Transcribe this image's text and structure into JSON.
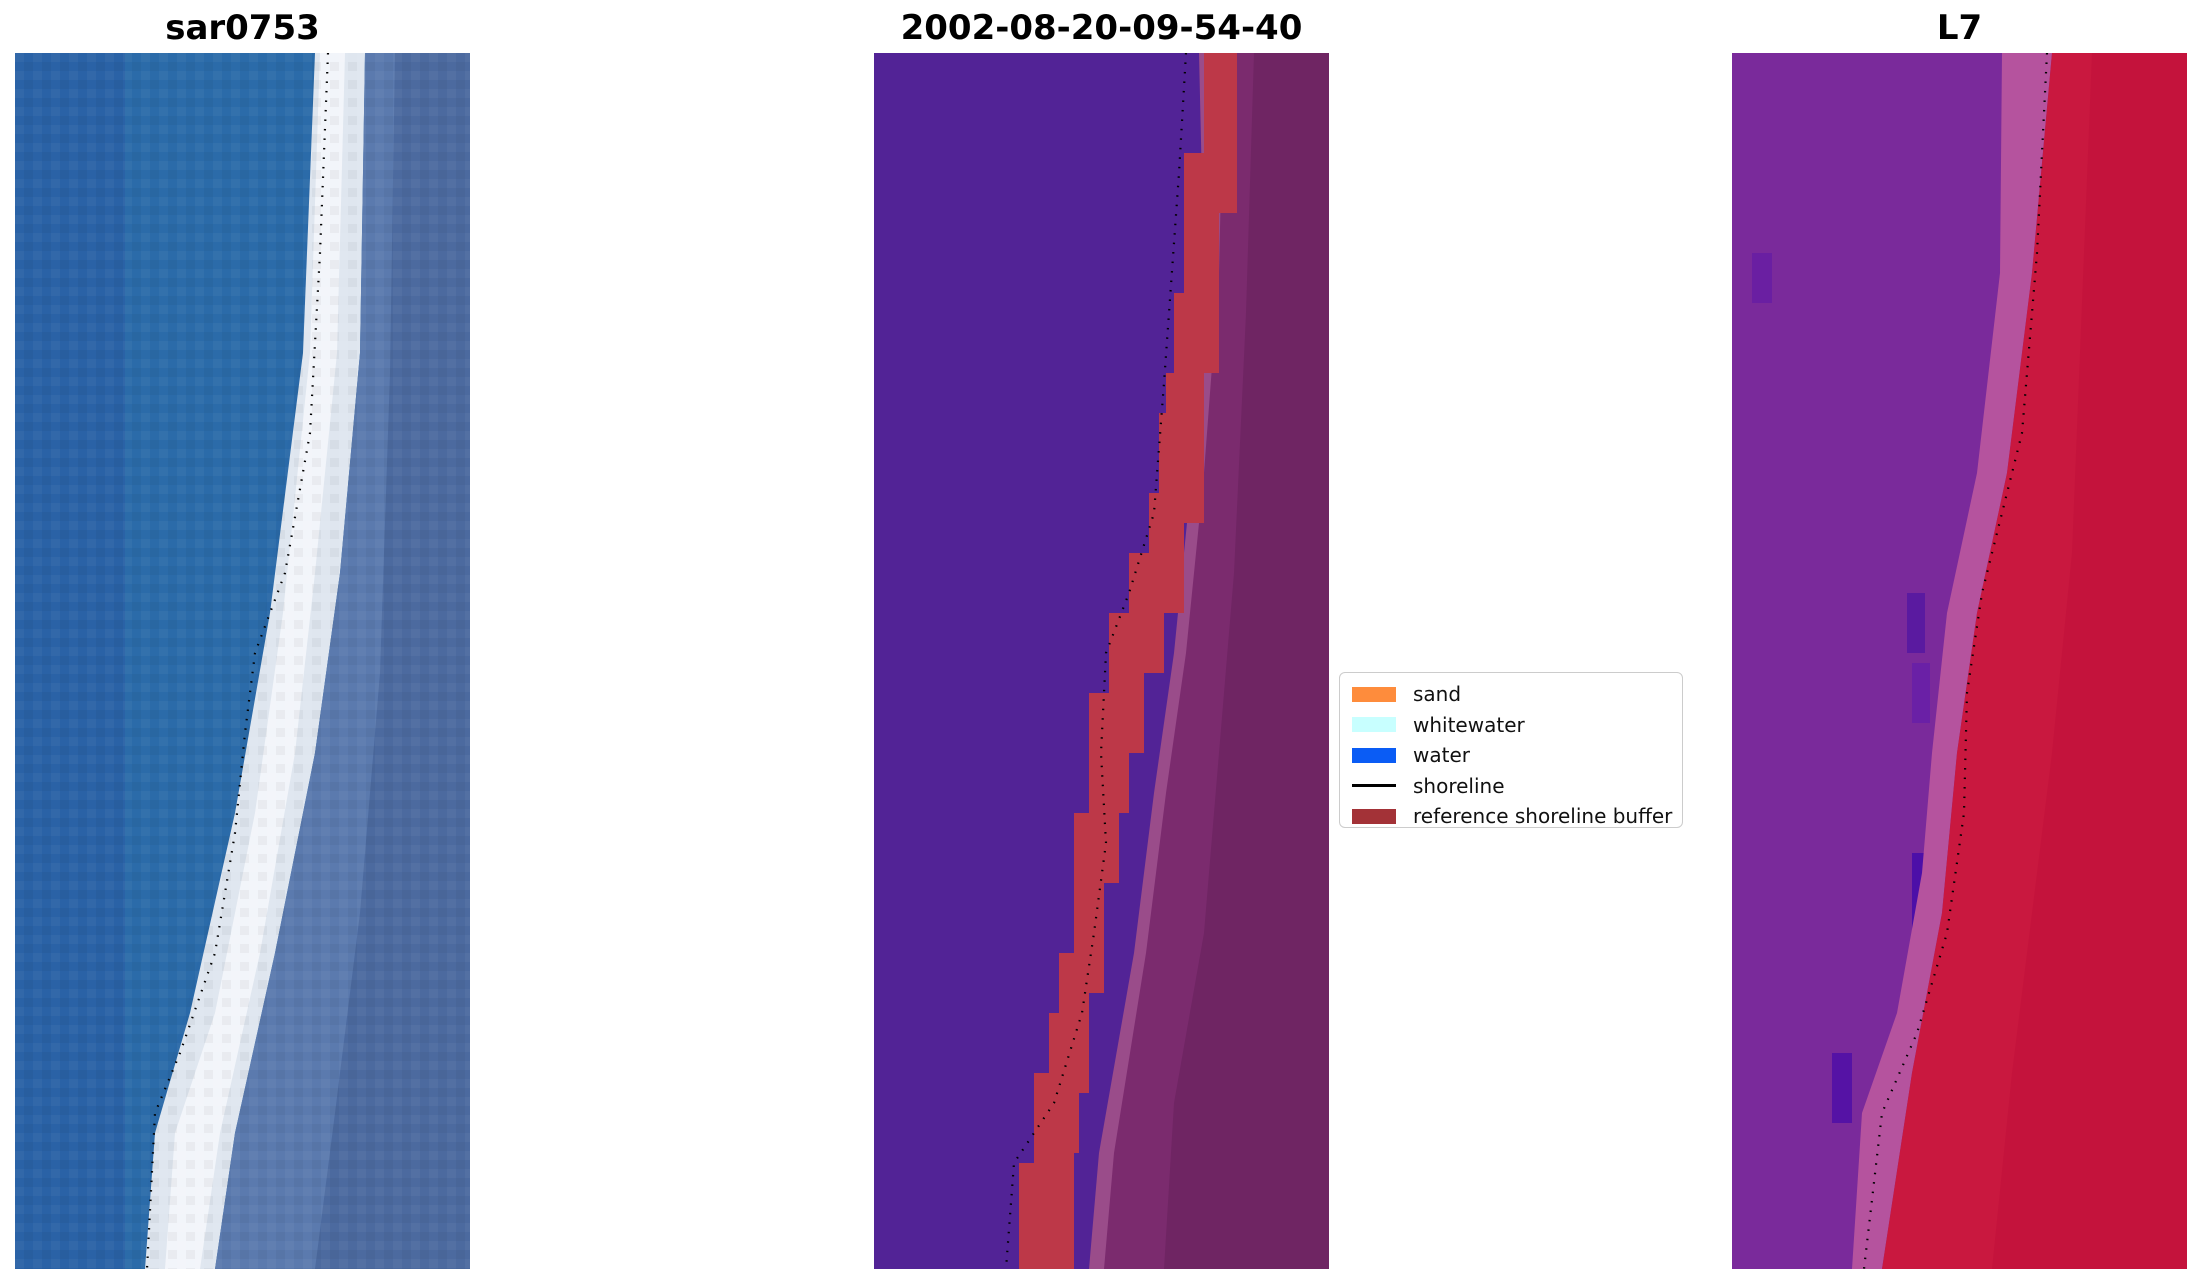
{
  "panels": [
    {
      "title": "sar0753",
      "image": "rgb-satellite-composite"
    },
    {
      "title": "2002-08-20-09-54-40",
      "image": "classified-image-with-reference-buffer"
    },
    {
      "title": "L7",
      "image": "false-color-index-image"
    }
  ],
  "legend": {
    "items": [
      {
        "label": "sand",
        "color": "#fe8c3c",
        "kind": "patch"
      },
      {
        "label": "whitewater",
        "color": "#c8ffff",
        "kind": "patch"
      },
      {
        "label": "water",
        "color": "#0a5cf5",
        "kind": "patch"
      },
      {
        "label": "shoreline",
        "color": "#000000",
        "kind": "line"
      },
      {
        "label": "reference shoreline buffer",
        "color": "#a33237",
        "kind": "patch"
      }
    ]
  },
  "colors": {
    "water_rgb": "#2b6aa8",
    "whitewater_rgb": "#e8ecf4",
    "land_rgb": "#5e78ad",
    "classified_water": "#522396",
    "buffer_fill": "#bd3848",
    "classified_land": "#7a2a6e",
    "index_water": "#7a2b9a",
    "index_land": "#c8143f"
  }
}
